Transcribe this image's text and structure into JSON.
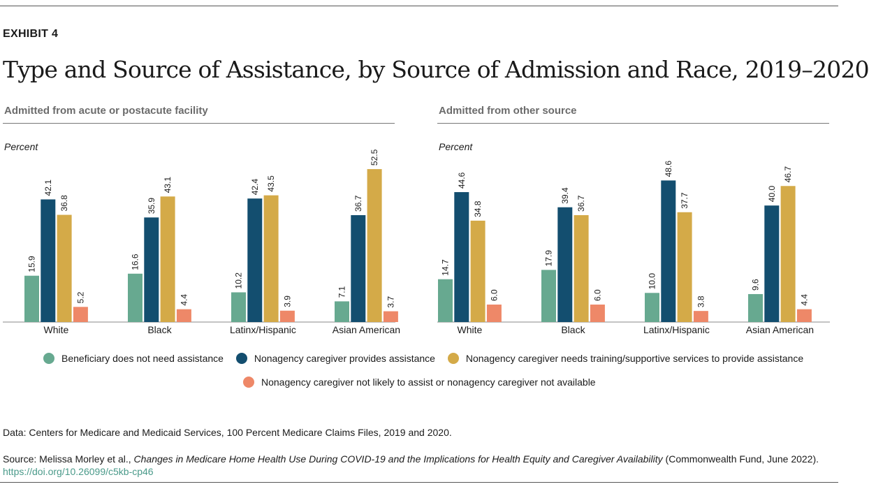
{
  "header": {
    "exhibit": "EXHIBIT 4",
    "title": "Type and Source of Assistance, by Source of Admission and Race, 2019–2020"
  },
  "colors": {
    "series": [
      "#67a990",
      "#134e6f",
      "#d4aa48",
      "#ee8868"
    ]
  },
  "chart_data": [
    {
      "type": "bar",
      "title": "Admitted from acute or postacute facility",
      "ylabel": "Percent",
      "ylim": [
        0,
        55
      ],
      "categories": [
        "White",
        "Black",
        "Latinx/Hispanic",
        "Asian American"
      ],
      "series": [
        {
          "name": "Beneficiary does not need assistance",
          "values": [
            15.9,
            16.6,
            10.2,
            7.1
          ],
          "labels": [
            "15.9",
            "16.6",
            "10.2",
            "7.1"
          ]
        },
        {
          "name": "Nonagency caregiver provides assistance",
          "values": [
            42.1,
            35.9,
            42.4,
            36.7
          ],
          "labels": [
            "42.1",
            "35.9",
            "42.4",
            "36.7"
          ]
        },
        {
          "name": "Nonagency caregiver needs training/supportive services to provide assistance",
          "values": [
            36.8,
            43.1,
            43.5,
            52.5
          ],
          "labels": [
            "36.8",
            "43.1",
            "43.5",
            "52.5"
          ]
        },
        {
          "name": "Nonagency caregiver not likely to assist or nonagency caregiver not available",
          "values": [
            5.2,
            4.4,
            3.9,
            3.7
          ],
          "labels": [
            "5.2",
            "4.4",
            "3.9",
            "3.7"
          ]
        }
      ]
    },
    {
      "type": "bar",
      "title": "Admitted from other source",
      "ylabel": "Percent",
      "ylim": [
        0,
        55
      ],
      "categories": [
        "White",
        "Black",
        "Latinx/Hispanic",
        "Asian American"
      ],
      "series": [
        {
          "name": "Beneficiary does not need assistance",
          "values": [
            14.7,
            17.9,
            10.0,
            9.6
          ],
          "labels": [
            "14.7",
            "17.9",
            "10.0",
            "9.6"
          ]
        },
        {
          "name": "Nonagency caregiver provides assistance",
          "values": [
            44.6,
            39.4,
            48.6,
            40.0
          ],
          "labels": [
            "44.6",
            "39.4",
            "48.6",
            "40.0"
          ]
        },
        {
          "name": "Nonagency caregiver needs training/supportive services to provide assistance",
          "values": [
            34.8,
            36.7,
            37.7,
            46.7
          ],
          "labels": [
            "34.8",
            "36.7",
            "37.7",
            "46.7"
          ]
        },
        {
          "name": "Nonagency caregiver not likely to assist or nonagency caregiver not available",
          "values": [
            6.0,
            6.0,
            3.8,
            4.4
          ],
          "labels": [
            "6.0",
            "6.0",
            "3.8",
            "4.4"
          ]
        }
      ]
    }
  ],
  "footer": {
    "data_note": "Data: Centers for Medicare and Medicaid Services, 100 Percent Medicare Claims Files, 2019 and 2020.",
    "source_prefix": "Source: Melissa Morley et al., ",
    "source_title": "Changes in Medicare Home Health Use During COVID-19 and the Implications for Health Equity and Caregiver Availability",
    "source_suffix": " (Commonwealth Fund, June 2022).",
    "doi": "https://doi.org/10.26099/c5kb-cp46"
  }
}
